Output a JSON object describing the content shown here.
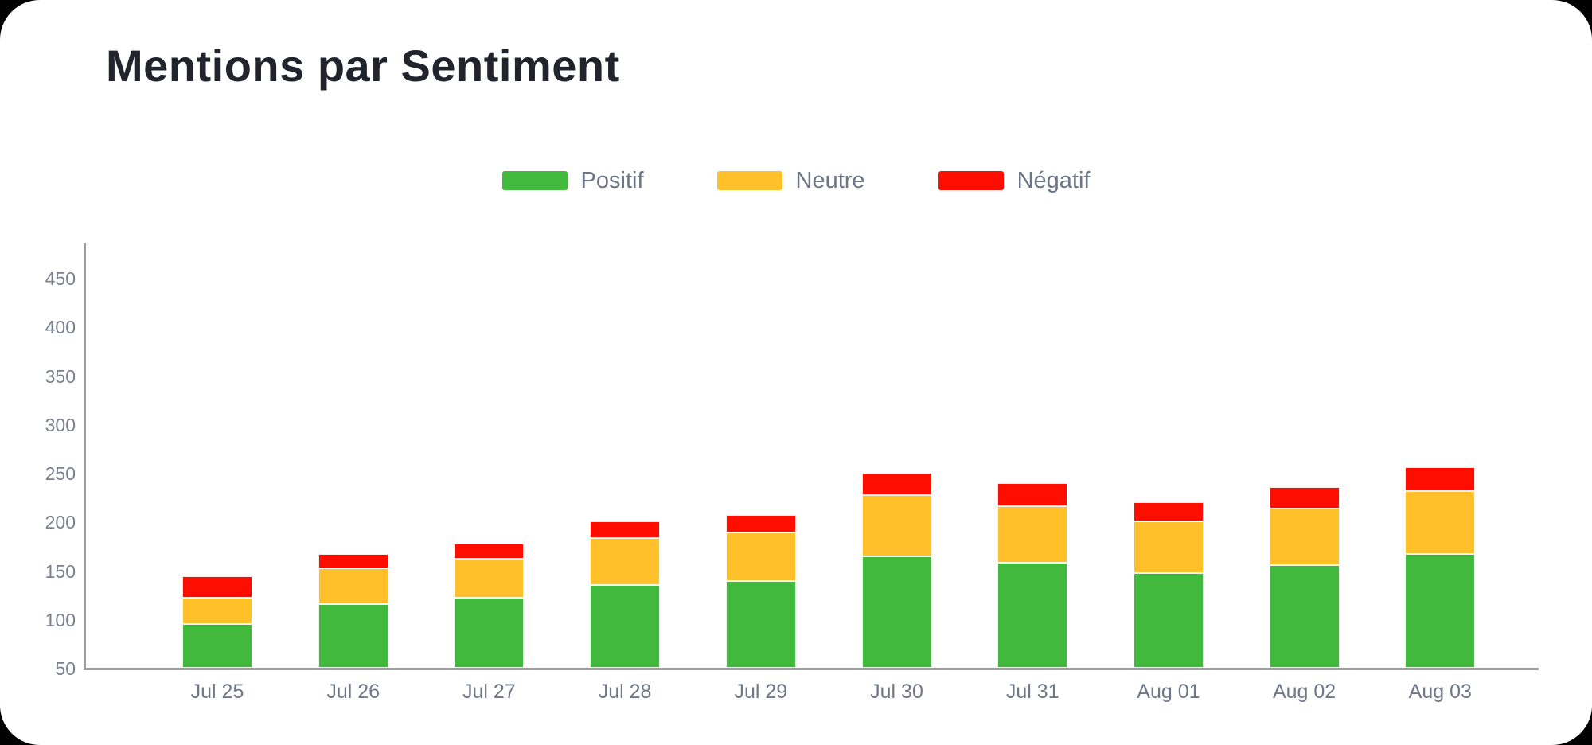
{
  "title": "Mentions par Sentiment",
  "theme": {
    "background": "#000000",
    "card_background": "#ffffff",
    "title_color": "#21242d",
    "legend_text_color": "#6b7585",
    "axis_text_color": "#79808f",
    "x_label_color": "#6f7888",
    "axis_line_color": "#9e9e9e",
    "positif_color": "#41b93c",
    "neutre_color": "#ffc02a",
    "negatif_color": "#ff0e00"
  },
  "chart_data": {
    "type": "bar",
    "stacked": true,
    "title": "Mentions par Sentiment",
    "categories": [
      "Jul 25",
      "Jul 26",
      "Jul 27",
      "Jul 28",
      "Jul 29",
      "Jul 30",
      "Jul 31",
      "Aug 01",
      "Aug 02",
      "Aug 03"
    ],
    "series": [
      {
        "name": "Positif",
        "color": "#41b93c",
        "values": [
          95,
          115,
          122,
          135,
          139,
          164,
          158,
          147,
          155,
          167
        ]
      },
      {
        "name": "Neutre",
        "color": "#ffc02a",
        "values": [
          27,
          37,
          40,
          48,
          50,
          63,
          58,
          53,
          58,
          64
        ]
      },
      {
        "name": "Négatif",
        "color": "#ff0e00",
        "values": [
          22,
          15,
          15,
          17,
          18,
          23,
          23,
          20,
          22,
          25
        ]
      }
    ],
    "stack_totals": [
      144,
      167,
      177,
      200,
      207,
      250,
      239,
      220,
      235,
      256
    ],
    "xlabel": "",
    "ylabel": "",
    "ylim": [
      50,
      487
    ],
    "yticks": [
      50,
      100,
      150,
      200,
      250,
      300,
      350,
      400,
      450
    ],
    "grid": false,
    "legend_position": "top"
  }
}
